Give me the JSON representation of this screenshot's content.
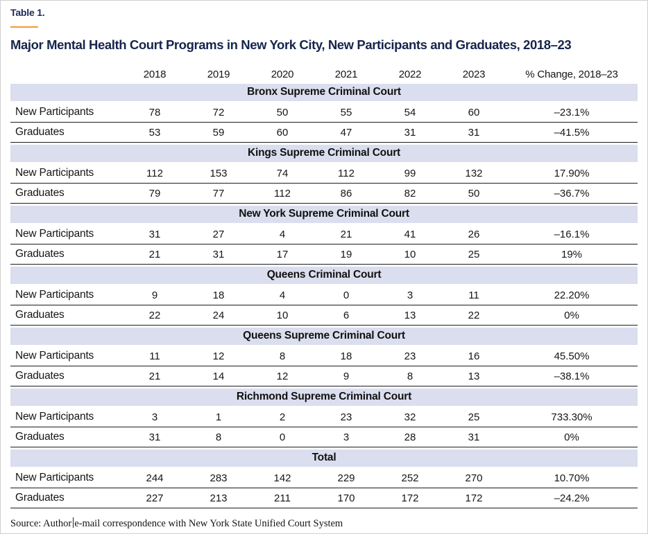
{
  "table_label": "Table 1.",
  "title": "Major Mental Health Court Programs in New York City, New Participants and Graduates, 2018–23",
  "columns": [
    "2018",
    "2019",
    "2020",
    "2021",
    "2022",
    "2023",
    "% Change, 2018–23"
  ],
  "row_labels": {
    "new_participants": "New Participants",
    "graduates": "Graduates"
  },
  "sections": [
    {
      "name": "Bronx Supreme Criminal Court",
      "new_participants": [
        "78",
        "72",
        "50",
        "55",
        "54",
        "60",
        "–23.1%"
      ],
      "graduates": [
        "53",
        "59",
        "60",
        "47",
        "31",
        "31",
        "–41.5%"
      ]
    },
    {
      "name": "Kings Supreme Criminal Court",
      "new_participants": [
        "112",
        "153",
        "74",
        "112",
        "99",
        "132",
        "17.90%"
      ],
      "graduates": [
        "79",
        "77",
        "112",
        "86",
        "82",
        "50",
        "–36.7%"
      ]
    },
    {
      "name": "New York Supreme Criminal Court",
      "new_participants": [
        "31",
        "27",
        "4",
        "21",
        "41",
        "26",
        "–16.1%"
      ],
      "graduates": [
        "21",
        "31",
        "17",
        "19",
        "10",
        "25",
        "19%"
      ]
    },
    {
      "name": "Queens Criminal Court",
      "new_participants": [
        "9",
        "18",
        "4",
        "0",
        "3",
        "11",
        "22.20%"
      ],
      "graduates": [
        "22",
        "24",
        "10",
        "6",
        "13",
        "22",
        "0%"
      ]
    },
    {
      "name": "Queens Supreme Criminal Court",
      "new_participants": [
        "11",
        "12",
        "8",
        "18",
        "23",
        "16",
        "45.50%"
      ],
      "graduates": [
        "21",
        "14",
        "12",
        "9",
        "8",
        "13",
        "–38.1%"
      ]
    },
    {
      "name": "Richmond Supreme Criminal Court",
      "new_participants": [
        "3",
        "1",
        "2",
        "23",
        "32",
        "25",
        "733.30%"
      ],
      "graduates": [
        "31",
        "8",
        "0",
        "3",
        "28",
        "31",
        "0%"
      ]
    },
    {
      "name": "Total",
      "new_participants": [
        "244",
        "283",
        "142",
        "229",
        "252",
        "270",
        "10.70%"
      ],
      "graduates": [
        "227",
        "213",
        "211",
        "170",
        "172",
        "172",
        "–24.2%"
      ]
    }
  ],
  "source": {
    "prefix": "Source: Author",
    "suffix": "e-mail correspondence with New York State Unified Court System"
  },
  "colors": {
    "heading_navy": "#16254c",
    "accent_orange": "#f49a2d",
    "section_band": "#dbdeee",
    "rule_black": "#1c1c1c"
  }
}
